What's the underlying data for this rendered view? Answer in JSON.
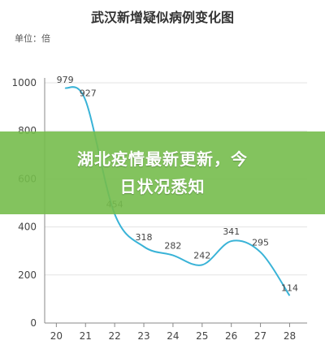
{
  "chart_data": {
    "type": "line",
    "title": "武汉新增疑似病例变化图",
    "unit_label": "单位：倍",
    "x": [
      20,
      21,
      22,
      23,
      24,
      25,
      26,
      27,
      28
    ],
    "series": [
      {
        "points": [
          {
            "x": 20.3,
            "y": 979
          },
          {
            "x": 21,
            "y": 927
          },
          {
            "x": 22,
            "y": 454
          },
          {
            "x": 23,
            "y": 318
          },
          {
            "x": 24,
            "y": 282
          },
          {
            "x": 25,
            "y": 242
          },
          {
            "x": 26,
            "y": 341
          },
          {
            "x": 27,
            "y": 295
          },
          {
            "x": 28,
            "y": 114
          }
        ]
      }
    ],
    "xlim": [
      19.6,
      28.6
    ],
    "ylim": [
      0,
      1000
    ],
    "yticks": [
      0,
      200,
      400,
      600,
      800,
      1000
    ],
    "grid": "horizontal",
    "line_color": "#39b3d7"
  },
  "banner": {
    "line1": "湖北疫情最新更新，今",
    "line2": "日状况悉知",
    "color": "#76bc4c"
  }
}
